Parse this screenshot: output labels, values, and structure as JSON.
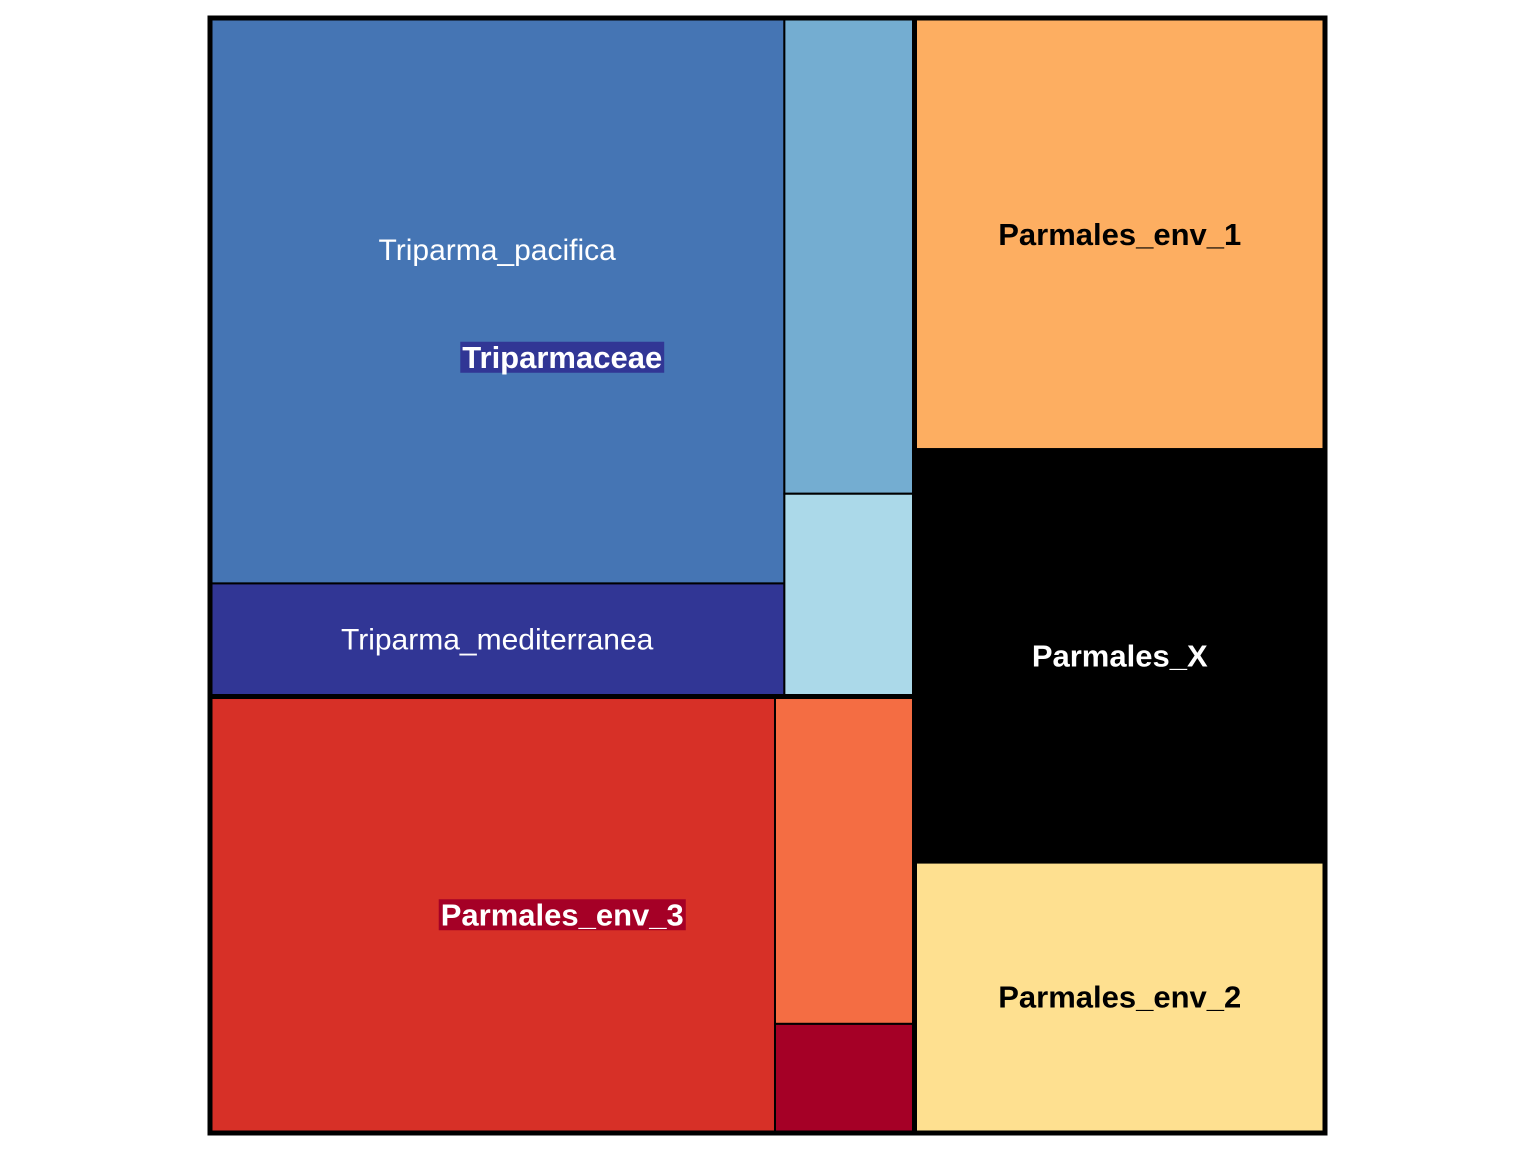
{
  "chart_data": {
    "type": "treemap",
    "groups": [
      {
        "name": "Triparmaceae",
        "label_bg": "#313695",
        "label_color": "#ffffff",
        "leaves": [
          {
            "name": "Triparma_pacifica",
            "label": "Triparma_pacifica",
            "value": 320,
            "color": "#4575b4",
            "text_color": "#ffffff"
          },
          {
            "name": "Triparma_mediterranea",
            "label": "Triparma_mediterranea",
            "value": 64,
            "color": "#313695",
            "text_color": "#ffffff"
          },
          {
            "name": "unlabeled-1",
            "label": "",
            "value": 61,
            "color": "#74add1"
          },
          {
            "name": "unlabeled-2",
            "label": "",
            "value": 26,
            "color": "#abd9e9"
          }
        ]
      },
      {
        "name": "Parmales_env_3",
        "label_bg": "#a50026",
        "label_color": "#ffffff",
        "leaves": [
          {
            "name": "Parmales_env_3-main",
            "label": "",
            "value": 243,
            "color": "#d73027"
          },
          {
            "name": "unlabeled-3",
            "label": "",
            "value": 45,
            "color": "#f46d43"
          },
          {
            "name": "unlabeled-4",
            "label": "",
            "value": 15,
            "color": "#a50026"
          }
        ]
      },
      {
        "name": "Parmales_env_1",
        "label_bg": "",
        "label_color": "#000000",
        "leaves": [
          {
            "name": "Parmales_env_1",
            "label": "",
            "value": 175,
            "color": "#fdae61"
          }
        ]
      },
      {
        "name": "Parmales_X",
        "label_bg": "",
        "label_color": "#ffffff",
        "leaves": [
          {
            "name": "Parmales_X",
            "label": "",
            "value": 166,
            "color": "#000000"
          }
        ]
      },
      {
        "name": "Parmales_env_2",
        "label_bg": "",
        "label_color": "#000000",
        "leaves": [
          {
            "name": "Parmales_env_2",
            "label": "",
            "value": 110,
            "color": "#fee090"
          }
        ]
      }
    ]
  }
}
